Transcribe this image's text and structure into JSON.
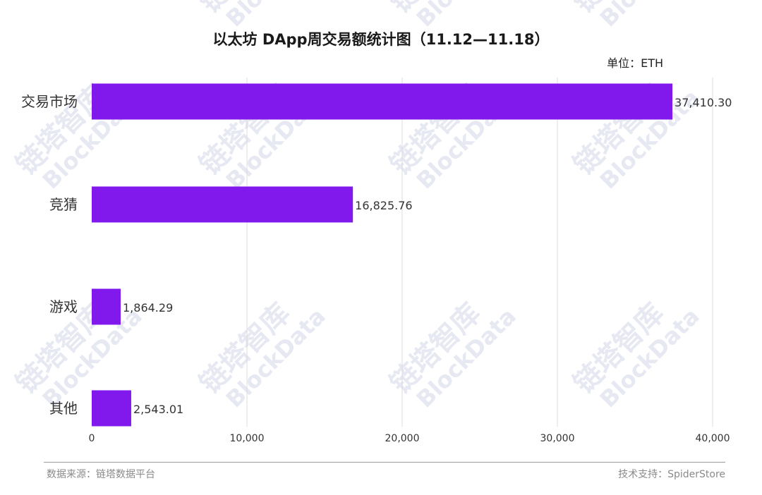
{
  "chart_data": {
    "type": "bar",
    "orientation": "horizontal",
    "title": "以太坊 DApp周交易额统计图（11.12—11.18）",
    "unit_label": "单位：ETH",
    "categories": [
      "交易市场",
      "竞猜",
      "游戏",
      "其他"
    ],
    "values": [
      37410.3,
      16825.76,
      1864.29,
      2543.01
    ],
    "value_labels": [
      "37,410.30",
      "16,825.76",
      "1,864.29",
      "2,543.01"
    ],
    "xlim": [
      0,
      40000
    ],
    "xticks": [
      0,
      10000,
      20000,
      30000,
      40000
    ],
    "xtick_labels": [
      "0",
      "10,000",
      "20,000",
      "30,000",
      "40,000"
    ],
    "grid": "vertical",
    "bar_color": "#8119EC"
  },
  "footer": {
    "source": "数据来源：链塔数据平台",
    "support": "技术支持：SpiderStore"
  },
  "watermark": {
    "text_cn": "链塔智库",
    "text_en": "BlockData",
    "color": "#E6E8F2"
  }
}
